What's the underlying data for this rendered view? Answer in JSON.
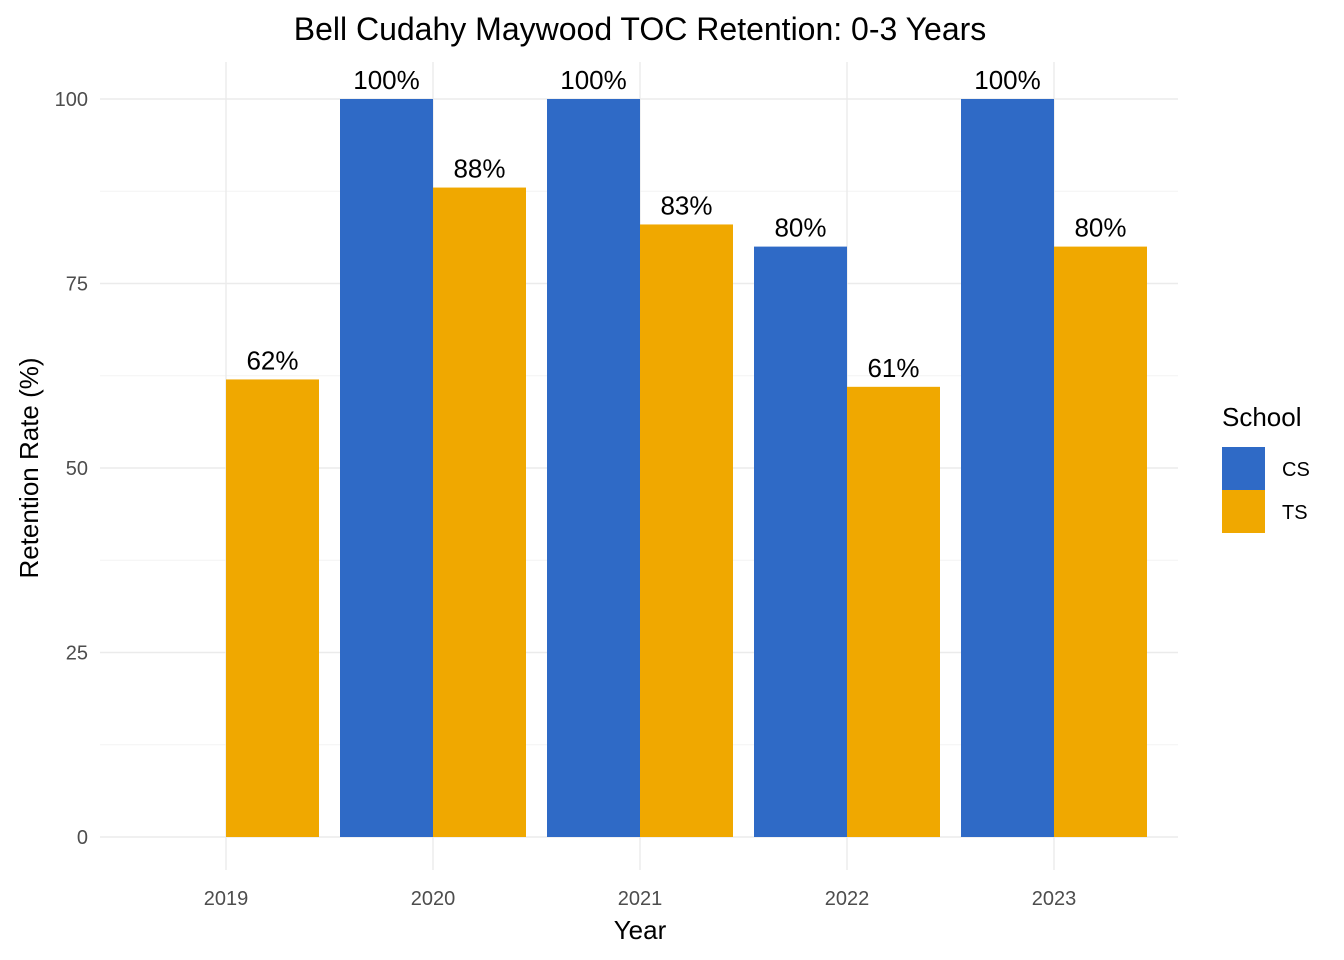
{
  "chart_data": {
    "type": "bar",
    "title": "Bell Cudahy Maywood TOC Retention: 0-3 Years",
    "xlabel": "Year",
    "ylabel": "Retention Rate (%)",
    "categories": [
      "2019",
      "2020",
      "2021",
      "2022",
      "2023"
    ],
    "series": [
      {
        "name": "CS",
        "color": "#2f6ac6",
        "values": [
          null,
          100,
          100,
          80,
          100
        ],
        "labels": [
          null,
          "100%",
          "100%",
          "80%",
          "100%"
        ]
      },
      {
        "name": "TS",
        "color": "#f0a800",
        "values": [
          62,
          88,
          83,
          61,
          80
        ],
        "labels": [
          "62%",
          "88%",
          "83%",
          "61%",
          "80%"
        ]
      }
    ],
    "ylim": [
      0,
      100
    ],
    "yticks": [
      0,
      25,
      50,
      75,
      100
    ],
    "grid": true,
    "legend": {
      "title": "School",
      "position": "right"
    }
  }
}
